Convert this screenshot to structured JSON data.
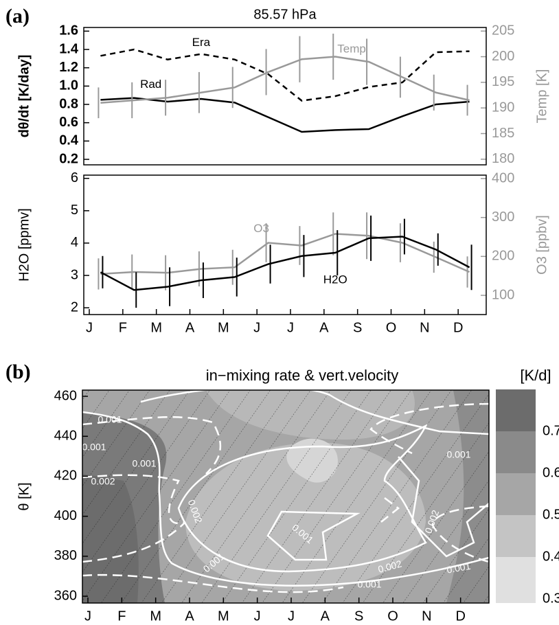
{
  "chart_data": [
    {
      "type": "line",
      "panel_label": "(a)",
      "title": "85.57 hPa",
      "y_label": "dθ/dt [K/day]",
      "y2_label": "Temp [K]",
      "ylim": [
        0.14,
        1.64
      ],
      "yticks": [
        0.2,
        0.4,
        0.6,
        0.8,
        {
          "value": 1.0,
          "label": "1.0"
        },
        1.2,
        1.4,
        1.6
      ],
      "y2lim": [
        178.9,
        205.7
      ],
      "y2ticks": [
        180,
        185,
        190,
        195,
        200,
        205
      ],
      "series": [
        {
          "name": "Era",
          "color": "#000000",
          "dashed": true,
          "values": [
            1.33,
            1.4,
            1.29,
            1.35,
            1.29,
            1.13,
            0.84,
            0.89,
            0.99,
            1.04,
            1.37,
            1.38
          ]
        },
        {
          "name": "Rad",
          "color": "#000000",
          "values": [
            0.85,
            0.87,
            0.83,
            0.86,
            0.82,
            0.66,
            0.5,
            0.52,
            0.53,
            0.67,
            0.8,
            0.83
          ]
        },
        {
          "name": "Temp",
          "color": "#999999",
          "axis": "y2",
          "values": [
            191,
            191.5,
            192,
            193,
            194,
            197,
            199.5,
            200,
            199,
            196,
            193,
            191.5
          ],
          "errors": [
            3,
            3.5,
            3.5,
            4,
            4,
            4.5,
            4.5,
            4.5,
            4.5,
            4,
            3.5,
            3
          ]
        }
      ]
    },
    {
      "type": "line",
      "y_label": "H2O [ppmv]",
      "y2_label": "O3 [ppbv]",
      "categories": [
        "J",
        "F",
        "M",
        "A",
        "M",
        "J",
        "J",
        "A",
        "S",
        "O",
        "N",
        "D"
      ],
      "ylim": [
        1.79,
        6.1
      ],
      "yticks": [
        2,
        3,
        4,
        5,
        6
      ],
      "y2lim": [
        50.6,
        408.8
      ],
      "y2ticks": [
        100,
        200,
        300,
        400
      ],
      "series": [
        {
          "name": "O3",
          "color": "#999999",
          "axis": "y2",
          "values": [
            155,
            160,
            158,
            168,
            172,
            235,
            228,
            258,
            253,
            235,
            198,
            160
          ],
          "errors": [
            40,
            45,
            45,
            45,
            45,
            50,
            50,
            55,
            60,
            50,
            40,
            40
          ]
        },
        {
          "name": "H2O",
          "color": "#000000",
          "values": [
            3.1,
            2.55,
            2.65,
            2.85,
            2.95,
            3.35,
            3.6,
            3.7,
            4.15,
            4.2,
            3.8,
            3.25
          ],
          "errors": [
            0.5,
            0.55,
            0.6,
            0.55,
            0.6,
            0.6,
            0.65,
            0.7,
            0.7,
            0.55,
            0.5,
            0.7
          ]
        }
      ]
    },
    {
      "type": "contour",
      "panel_label": "(b)",
      "title": "in−mixing rate & vert.velocity",
      "y_label": "θ [K]",
      "colorbar_label": "[K/d]",
      "categories": [
        "J",
        "F",
        "M",
        "A",
        "M",
        "J",
        "J",
        "A",
        "S",
        "O",
        "N",
        "D"
      ],
      "ylim": [
        356.6,
        463.1
      ],
      "yticks": [
        360,
        380,
        400,
        420,
        440,
        460
      ],
      "colorbar_lim": [
        0.3,
        0.8
      ],
      "colorbar_ticks": [
        0.3,
        0.4,
        0.5,
        0.6,
        0.7
      ],
      "colorbar_colors": [
        "#e0e0e0",
        "#c4c4c4",
        "#a6a6a6",
        "#8a8a8a",
        "#6c6c6c"
      ],
      "contour_labels": [
        "0.001",
        "0.001",
        "0.001",
        "0.002",
        "0.002",
        "0.001",
        "0.001",
        "0.002",
        "0.001",
        "0.001",
        "0.002",
        "0.001"
      ]
    }
  ]
}
